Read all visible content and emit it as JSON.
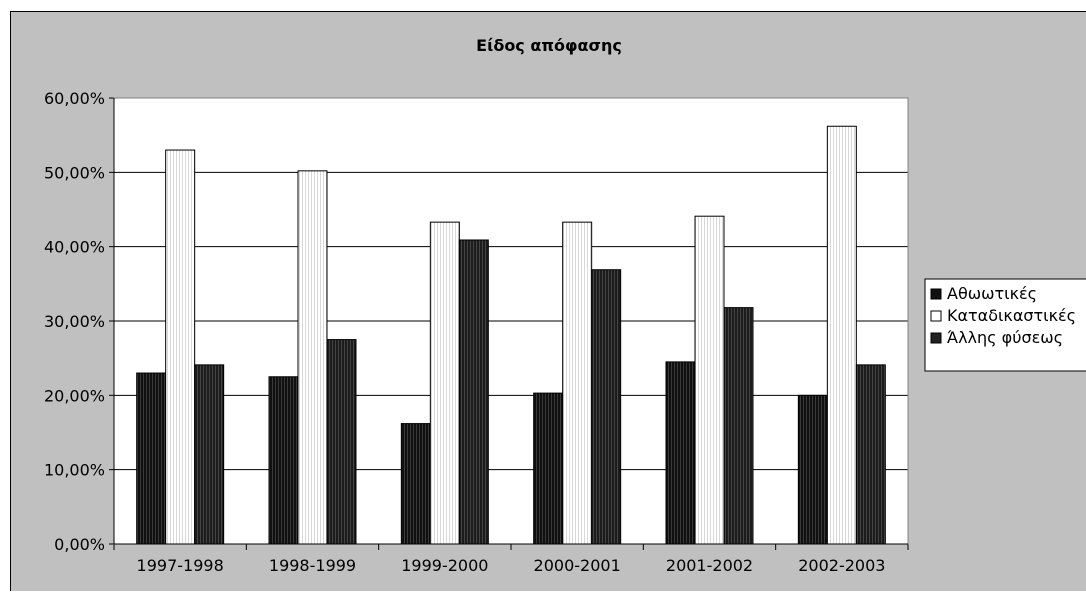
{
  "chart_data": {
    "type": "bar",
    "title": "Είδος απόφασης",
    "categories": [
      "1997-1998",
      "1998-1999",
      "1999-2000",
      "2000-2001",
      "2001-2002",
      "2002-2003"
    ],
    "series": [
      {
        "name": "Αθωωτικές",
        "values": [
          23.0,
          22.5,
          16.2,
          20.3,
          24.5,
          20.0
        ],
        "color": "#111111",
        "pattern": "dark"
      },
      {
        "name": "Καταδικαστικές",
        "values": [
          53.0,
          50.2,
          43.3,
          43.3,
          44.1,
          56.2
        ],
        "color": "#ffffff",
        "pattern": "light"
      },
      {
        "name": "Άλλης φύσεως",
        "values": [
          24.1,
          27.5,
          40.9,
          36.9,
          31.8,
          24.1
        ],
        "color": "#222222",
        "pattern": "dark"
      }
    ],
    "y_ticks": [
      "0,00%",
      "10,00%",
      "20,00%",
      "30,00%",
      "40,00%",
      "50,00%",
      "60,00%"
    ],
    "ylim": [
      0,
      60
    ],
    "grid": true,
    "legend_position": "right",
    "colors": {
      "chart_background": "#c0c0c0",
      "plot_background": "#ffffff",
      "grid": "#000000"
    }
  }
}
